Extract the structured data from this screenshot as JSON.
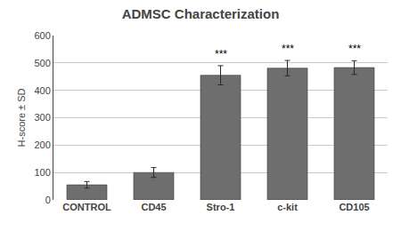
{
  "chart_data": {
    "type": "bar",
    "title": "ADMSC Characterization",
    "ylabel": "H-score ± SD",
    "categories": [
      "CONTROL",
      "CD45",
      "Stro-1",
      "c-kit",
      "CD105"
    ],
    "values": [
      55,
      100,
      455,
      481,
      483
    ],
    "errors": [
      12,
      18,
      35,
      28,
      25
    ],
    "annotations": [
      {
        "category": "Stro-1",
        "text": "***"
      },
      {
        "category": "c-kit",
        "text": "***"
      },
      {
        "category": "CD105",
        "text": "***"
      }
    ],
    "color": "#6e6e6e",
    "ylim": [
      0,
      600
    ],
    "yticks": [
      0,
      100,
      200,
      300,
      400,
      500,
      600
    ],
    "grid": true
  }
}
